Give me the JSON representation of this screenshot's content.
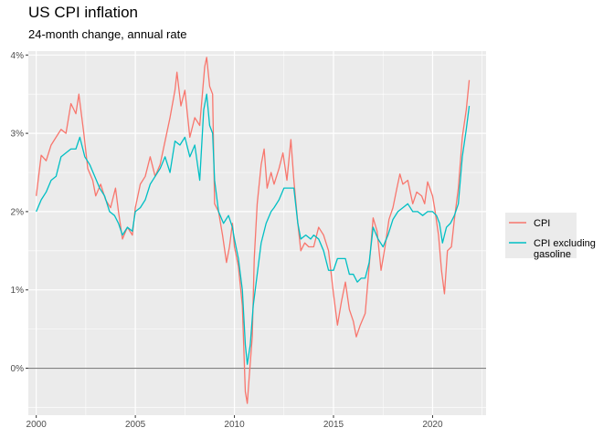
{
  "chart_data": {
    "type": "line",
    "title": "US CPI inflation",
    "subtitle": "24-month change, annual rate",
    "xlabel": "",
    "ylabel": "",
    "xlim": [
      1999.6,
      2022.7
    ],
    "ylim": [
      -0.6,
      4.05
    ],
    "x_ticks": [
      2000,
      2005,
      2010,
      2015,
      2020
    ],
    "x_tick_labels": [
      "2000",
      "2005",
      "2010",
      "2015",
      "2020"
    ],
    "y_ticks": [
      0,
      1,
      2,
      3,
      4
    ],
    "y_tick_labels": [
      "0%",
      "1%",
      "2%",
      "3%",
      "4%"
    ],
    "reference_line": 0,
    "grid": true,
    "legend_position": "right",
    "colors": {
      "panel": "#EBEBEB",
      "grid": "#FFFFFF",
      "ref_line": "#7F7F7F"
    },
    "series": [
      {
        "name": "CPI",
        "color": "#F8766D",
        "points": [
          [
            2000.0,
            2.2
          ],
          [
            2000.25,
            2.72
          ],
          [
            2000.5,
            2.65
          ],
          [
            2000.75,
            2.85
          ],
          [
            2001.0,
            2.95
          ],
          [
            2001.25,
            3.05
          ],
          [
            2001.5,
            3.0
          ],
          [
            2001.75,
            3.38
          ],
          [
            2002.0,
            3.25
          ],
          [
            2002.15,
            3.5
          ],
          [
            2002.4,
            3.0
          ],
          [
            2002.6,
            2.55
          ],
          [
            2002.85,
            2.4
          ],
          [
            2003.0,
            2.2
          ],
          [
            2003.25,
            2.35
          ],
          [
            2003.5,
            2.15
          ],
          [
            2003.75,
            2.05
          ],
          [
            2004.0,
            2.3
          ],
          [
            2004.15,
            2.0
          ],
          [
            2004.35,
            1.65
          ],
          [
            2004.6,
            1.8
          ],
          [
            2004.85,
            1.7
          ],
          [
            2005.0,
            2.05
          ],
          [
            2005.25,
            2.35
          ],
          [
            2005.5,
            2.45
          ],
          [
            2005.75,
            2.7
          ],
          [
            2006.0,
            2.45
          ],
          [
            2006.25,
            2.6
          ],
          [
            2006.5,
            2.9
          ],
          [
            2006.75,
            3.2
          ],
          [
            2007.0,
            3.55
          ],
          [
            2007.1,
            3.78
          ],
          [
            2007.3,
            3.35
          ],
          [
            2007.5,
            3.55
          ],
          [
            2007.75,
            2.95
          ],
          [
            2008.0,
            3.2
          ],
          [
            2008.25,
            3.1
          ],
          [
            2008.5,
            3.85
          ],
          [
            2008.6,
            3.97
          ],
          [
            2008.75,
            3.6
          ],
          [
            2008.9,
            3.5
          ],
          [
            2009.0,
            2.1
          ],
          [
            2009.2,
            2.0
          ],
          [
            2009.4,
            1.7
          ],
          [
            2009.6,
            1.35
          ],
          [
            2009.75,
            1.55
          ],
          [
            2009.9,
            1.85
          ],
          [
            2010.0,
            1.55
          ],
          [
            2010.2,
            1.3
          ],
          [
            2010.4,
            0.8
          ],
          [
            2010.55,
            -0.3
          ],
          [
            2010.65,
            -0.45
          ],
          [
            2010.75,
            -0.1
          ],
          [
            2010.9,
            0.4
          ],
          [
            2011.0,
            1.4
          ],
          [
            2011.15,
            2.1
          ],
          [
            2011.35,
            2.6
          ],
          [
            2011.5,
            2.8
          ],
          [
            2011.65,
            2.3
          ],
          [
            2011.85,
            2.5
          ],
          [
            2012.0,
            2.35
          ],
          [
            2012.25,
            2.55
          ],
          [
            2012.45,
            2.75
          ],
          [
            2012.65,
            2.4
          ],
          [
            2012.85,
            2.92
          ],
          [
            2013.0,
            2.4
          ],
          [
            2013.2,
            1.85
          ],
          [
            2013.35,
            1.5
          ],
          [
            2013.55,
            1.6
          ],
          [
            2013.75,
            1.55
          ],
          [
            2014.0,
            1.55
          ],
          [
            2014.25,
            1.8
          ],
          [
            2014.5,
            1.7
          ],
          [
            2014.75,
            1.5
          ],
          [
            2015.0,
            0.95
          ],
          [
            2015.2,
            0.55
          ],
          [
            2015.4,
            0.85
          ],
          [
            2015.6,
            1.1
          ],
          [
            2015.8,
            0.75
          ],
          [
            2016.0,
            0.6
          ],
          [
            2016.15,
            0.4
          ],
          [
            2016.35,
            0.55
          ],
          [
            2016.6,
            0.7
          ],
          [
            2016.8,
            1.3
          ],
          [
            2017.0,
            1.92
          ],
          [
            2017.2,
            1.75
          ],
          [
            2017.4,
            1.25
          ],
          [
            2017.6,
            1.55
          ],
          [
            2017.8,
            1.9
          ],
          [
            2018.0,
            2.05
          ],
          [
            2018.2,
            2.3
          ],
          [
            2018.35,
            2.48
          ],
          [
            2018.5,
            2.35
          ],
          [
            2018.75,
            2.4
          ],
          [
            2019.0,
            2.1
          ],
          [
            2019.2,
            2.25
          ],
          [
            2019.45,
            2.2
          ],
          [
            2019.6,
            2.1
          ],
          [
            2019.75,
            2.38
          ],
          [
            2020.0,
            2.2
          ],
          [
            2020.1,
            2.05
          ],
          [
            2020.3,
            1.7
          ],
          [
            2020.45,
            1.25
          ],
          [
            2020.6,
            0.95
          ],
          [
            2020.75,
            1.5
          ],
          [
            2020.95,
            1.55
          ],
          [
            2021.1,
            1.9
          ],
          [
            2021.3,
            2.3
          ],
          [
            2021.5,
            2.95
          ],
          [
            2021.7,
            3.3
          ],
          [
            2021.85,
            3.68
          ]
        ]
      },
      {
        "name": "CPI excluding\ngasoline",
        "color": "#00BFC4",
        "points": [
          [
            2000.0,
            2.0
          ],
          [
            2000.25,
            2.15
          ],
          [
            2000.5,
            2.25
          ],
          [
            2000.75,
            2.4
          ],
          [
            2001.0,
            2.45
          ],
          [
            2001.25,
            2.7
          ],
          [
            2001.5,
            2.75
          ],
          [
            2001.75,
            2.8
          ],
          [
            2002.0,
            2.8
          ],
          [
            2002.2,
            2.95
          ],
          [
            2002.45,
            2.7
          ],
          [
            2002.7,
            2.6
          ],
          [
            2002.95,
            2.45
          ],
          [
            2003.2,
            2.3
          ],
          [
            2003.45,
            2.2
          ],
          [
            2003.7,
            2.0
          ],
          [
            2003.95,
            1.95
          ],
          [
            2004.15,
            1.85
          ],
          [
            2004.35,
            1.7
          ],
          [
            2004.6,
            1.8
          ],
          [
            2004.85,
            1.75
          ],
          [
            2005.0,
            2.0
          ],
          [
            2005.25,
            2.05
          ],
          [
            2005.5,
            2.15
          ],
          [
            2005.75,
            2.35
          ],
          [
            2006.0,
            2.45
          ],
          [
            2006.25,
            2.55
          ],
          [
            2006.5,
            2.7
          ],
          [
            2006.75,
            2.5
          ],
          [
            2007.0,
            2.9
          ],
          [
            2007.25,
            2.85
          ],
          [
            2007.5,
            2.95
          ],
          [
            2007.75,
            2.7
          ],
          [
            2008.0,
            2.85
          ],
          [
            2008.25,
            2.4
          ],
          [
            2008.45,
            3.3
          ],
          [
            2008.6,
            3.5
          ],
          [
            2008.75,
            3.1
          ],
          [
            2008.9,
            3.0
          ],
          [
            2009.0,
            2.4
          ],
          [
            2009.2,
            2.0
          ],
          [
            2009.45,
            1.85
          ],
          [
            2009.7,
            1.95
          ],
          [
            2009.9,
            1.8
          ],
          [
            2010.0,
            1.65
          ],
          [
            2010.2,
            1.4
          ],
          [
            2010.4,
            1.0
          ],
          [
            2010.55,
            0.3
          ],
          [
            2010.65,
            0.05
          ],
          [
            2010.8,
            0.3
          ],
          [
            2010.95,
            0.8
          ],
          [
            2011.15,
            1.2
          ],
          [
            2011.35,
            1.6
          ],
          [
            2011.6,
            1.85
          ],
          [
            2011.85,
            2.0
          ],
          [
            2012.0,
            2.05
          ],
          [
            2012.25,
            2.15
          ],
          [
            2012.5,
            2.3
          ],
          [
            2012.75,
            2.3
          ],
          [
            2013.0,
            2.3
          ],
          [
            2013.2,
            1.85
          ],
          [
            2013.35,
            1.65
          ],
          [
            2013.6,
            1.7
          ],
          [
            2013.85,
            1.65
          ],
          [
            2014.0,
            1.7
          ],
          [
            2014.25,
            1.65
          ],
          [
            2014.5,
            1.5
          ],
          [
            2014.75,
            1.25
          ],
          [
            2015.0,
            1.25
          ],
          [
            2015.2,
            1.4
          ],
          [
            2015.4,
            1.4
          ],
          [
            2015.6,
            1.4
          ],
          [
            2015.8,
            1.2
          ],
          [
            2016.0,
            1.2
          ],
          [
            2016.2,
            1.1
          ],
          [
            2016.4,
            1.15
          ],
          [
            2016.6,
            1.15
          ],
          [
            2016.8,
            1.35
          ],
          [
            2017.0,
            1.8
          ],
          [
            2017.25,
            1.65
          ],
          [
            2017.5,
            1.55
          ],
          [
            2017.75,
            1.7
          ],
          [
            2018.0,
            1.9
          ],
          [
            2018.25,
            2.0
          ],
          [
            2018.5,
            2.05
          ],
          [
            2018.75,
            2.1
          ],
          [
            2019.0,
            2.0
          ],
          [
            2019.25,
            2.0
          ],
          [
            2019.5,
            1.95
          ],
          [
            2019.75,
            2.0
          ],
          [
            2020.0,
            2.0
          ],
          [
            2020.2,
            1.95
          ],
          [
            2020.35,
            1.85
          ],
          [
            2020.5,
            1.6
          ],
          [
            2020.7,
            1.8
          ],
          [
            2020.9,
            1.85
          ],
          [
            2021.1,
            1.95
          ],
          [
            2021.3,
            2.1
          ],
          [
            2021.5,
            2.7
          ],
          [
            2021.7,
            3.05
          ],
          [
            2021.85,
            3.35
          ]
        ]
      }
    ]
  }
}
